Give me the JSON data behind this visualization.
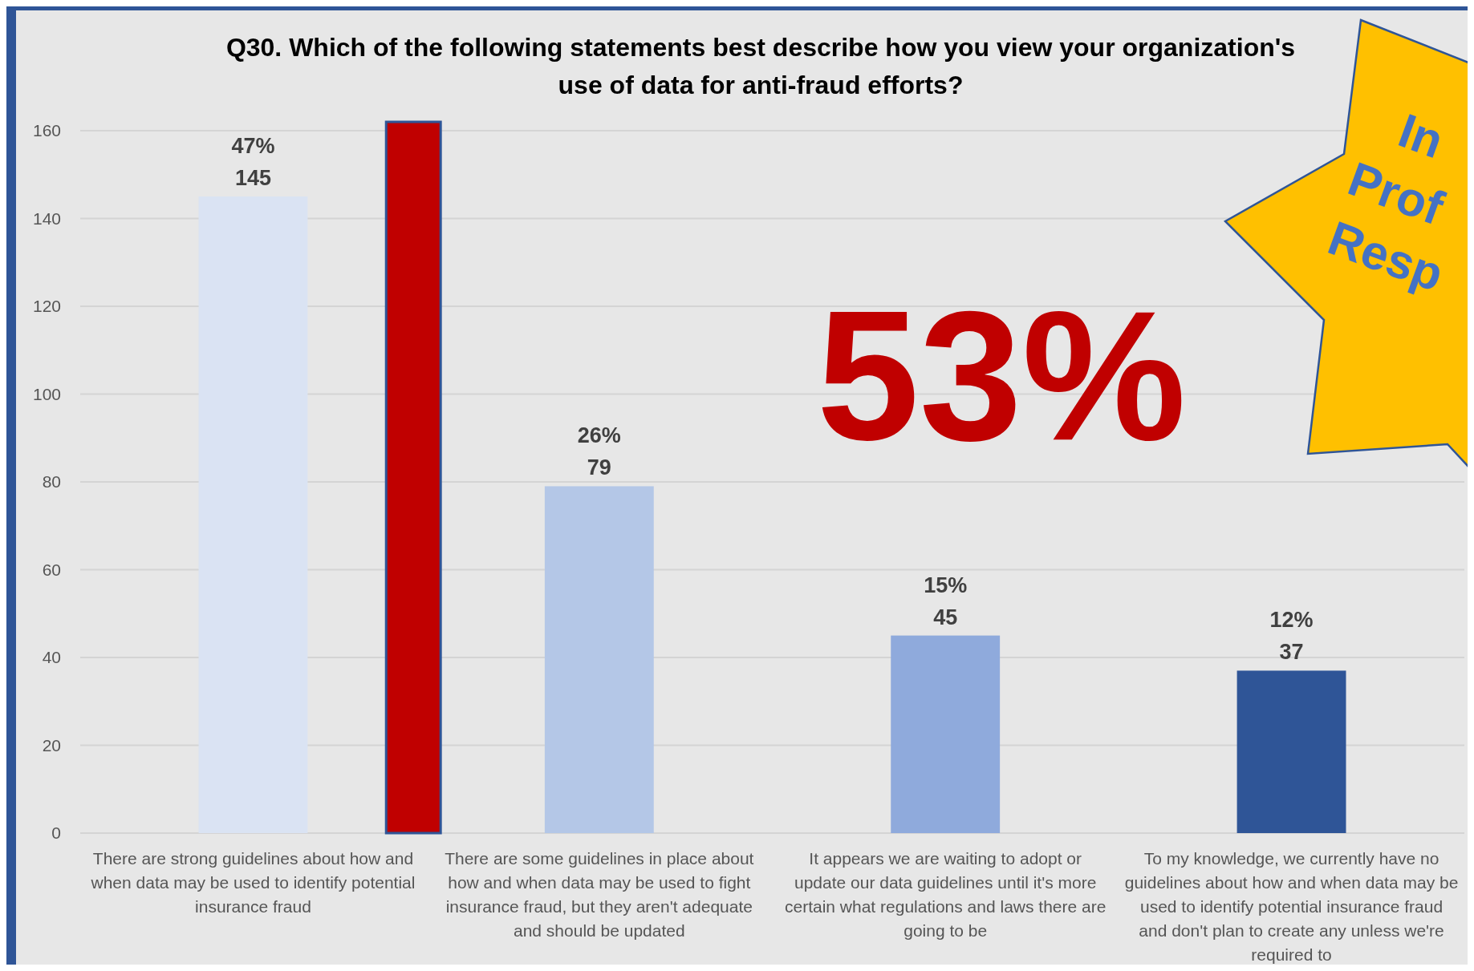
{
  "chart_data": {
    "type": "bar",
    "title": "Q30. Which of the following statements best describe how you view your organization's use of data for anti-fraud efforts?",
    "categories": [
      "There are strong guidelines about how and when data may be used to identify potential insurance fraud",
      "There are some guidelines in place about how and when data may be used to fight insurance fraud, but they aren't adequate and should be updated",
      "It appears we are waiting to adopt or update our data guidelines until it's more certain what regulations and laws there are going to be",
      "To my knowledge, we currently have no guidelines about how and when data may be used to identify potential insurance fraud and don't plan to create any unless we're required to"
    ],
    "series": [
      {
        "values": [
          145,
          79,
          45,
          37
        ],
        "colors": [
          "#dae3f3",
          "#b4c7e7",
          "#8faadc",
          "#2f5597"
        ],
        "value_labels": [
          "47%\n145",
          "26%\n79",
          "15%\n45",
          "12%\n37"
        ]
      },
      {
        "values": [
          162,
          null,
          null,
          null
        ],
        "color": "#c00000"
      }
    ],
    "ylim": [
      0,
      162
    ],
    "yticks": [
      0,
      20,
      40,
      60,
      80,
      100,
      120,
      140,
      160
    ],
    "grid": "y",
    "annotations": [
      "53%",
      "In",
      "Prof",
      "Resp"
    ]
  }
}
